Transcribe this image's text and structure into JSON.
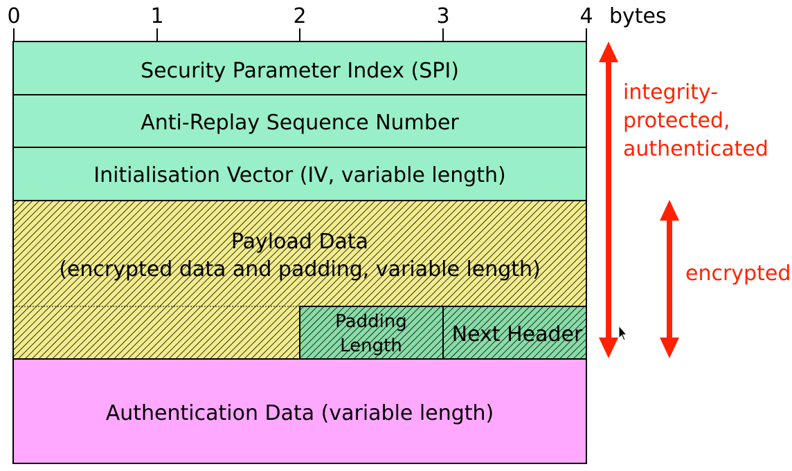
{
  "scale": {
    "ticks": [
      "0",
      "1",
      "2",
      "3",
      "4"
    ],
    "unit": "bytes"
  },
  "fields": {
    "spi": "Security Parameter Index (SPI)",
    "seq": "Anti-Replay Sequence Number",
    "iv": "Initialisation Vector (IV, variable length)",
    "payload_line1": "Payload Data",
    "payload_line2": "(encrypted data and padding, variable length)",
    "padlen_line1": "Padding",
    "padlen_line2": "Length",
    "next_header": "Next Header",
    "auth": "Authentication Data (variable length)"
  },
  "annotations": {
    "integrity_line1": "integrity-",
    "integrity_line2": "protected,",
    "integrity_line3": "authenticated",
    "encrypted": "encrypted"
  },
  "colors": {
    "header_fill": "#99f0c8",
    "payload_fill": "#f2ec8c",
    "trailer_fill": "#88dca8",
    "auth_fill": "#ffa8ff",
    "annotation": "#ff2200"
  }
}
